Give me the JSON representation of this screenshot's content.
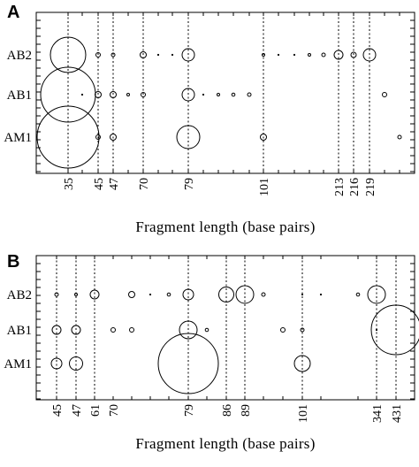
{
  "chart_data": [
    {
      "type": "scatter",
      "panel_label": "A",
      "xlabel": "Fragment length (base pairs)",
      "rows": [
        "AB2",
        "AB1",
        "AM1"
      ],
      "x_ticks": [
        "35",
        "45",
        "47",
        "70",
        "79",
        "101",
        "213",
        "216",
        "219"
      ],
      "dotted_lines": [
        "35",
        "45",
        "47",
        "70",
        "79",
        "101",
        "213",
        "216",
        "219"
      ],
      "points": [
        {
          "row": "AB2",
          "x": "35",
          "size": 20
        },
        {
          "row": "AB2",
          "x": "45",
          "size": 2.5
        },
        {
          "row": "AB2",
          "x": "47",
          "size": 2
        },
        {
          "row": "AB2",
          "x": "70",
          "size": 3.5
        },
        {
          "row": "AB2",
          "x": "74",
          "size": 1.2
        },
        {
          "row": "AB2",
          "x": "76",
          "size": 1.2
        },
        {
          "row": "AB2",
          "x": "79",
          "size": 7
        },
        {
          "row": "AB2",
          "x": "101",
          "size": 1.5
        },
        {
          "row": "AB2",
          "x": "110",
          "size": 1
        },
        {
          "row": "AB2",
          "x": "150",
          "size": 1.3
        },
        {
          "row": "AB2",
          "x": "180",
          "size": 1.5
        },
        {
          "row": "AB2",
          "x": "200",
          "size": 2
        },
        {
          "row": "AB2",
          "x": "213",
          "size": 5
        },
        {
          "row": "AB2",
          "x": "216",
          "size": 3
        },
        {
          "row": "AB2",
          "x": "219",
          "size": 7
        },
        {
          "row": "AB1",
          "x": "35",
          "size": 31
        },
        {
          "row": "AB1",
          "x": "40",
          "size": 1
        },
        {
          "row": "AB1",
          "x": "45",
          "size": 3.5
        },
        {
          "row": "AB1",
          "x": "47",
          "size": 3.5
        },
        {
          "row": "AB1",
          "x": "60",
          "size": 1.5
        },
        {
          "row": "AB1",
          "x": "70",
          "size": 2.5
        },
        {
          "row": "AB1",
          "x": "79",
          "size": 7
        },
        {
          "row": "AB1",
          "x": "82",
          "size": 1.2
        },
        {
          "row": "AB1",
          "x": "85",
          "size": 1.5
        },
        {
          "row": "AB1",
          "x": "88",
          "size": 1.8
        },
        {
          "row": "AB1",
          "x": "95",
          "size": 2
        },
        {
          "row": "AB1",
          "x": "230",
          "size": 2.5
        },
        {
          "row": "AM1",
          "x": "35",
          "size": 35
        },
        {
          "row": "AM1",
          "x": "45",
          "size": 2.5
        },
        {
          "row": "AM1",
          "x": "47",
          "size": 3.5
        },
        {
          "row": "AM1",
          "x": "79",
          "size": 13
        },
        {
          "row": "AM1",
          "x": "101",
          "size": 3.5
        },
        {
          "row": "AM1",
          "x": "240",
          "size": 2
        }
      ]
    },
    {
      "type": "scatter",
      "panel_label": "B",
      "xlabel": "Fragment length (base pairs)",
      "rows": [
        "AB2",
        "AB1",
        "AM1"
      ],
      "x_ticks": [
        "45",
        "47",
        "61",
        "70",
        "79",
        "86",
        "89",
        "101",
        "341",
        "431"
      ],
      "dotted_lines": [
        "45",
        "47",
        "61",
        "79",
        "86",
        "89",
        "101",
        "341",
        "431"
      ],
      "points": [
        {
          "row": "AB2",
          "x": "45",
          "size": 2
        },
        {
          "row": "AB2",
          "x": "47",
          "size": 1.5
        },
        {
          "row": "AB2",
          "x": "61",
          "size": 5
        },
        {
          "row": "AB2",
          "x": "72",
          "size": 3.5
        },
        {
          "row": "AB2",
          "x": "74",
          "size": 1.3
        },
        {
          "row": "AB2",
          "x": "76",
          "size": 1.8
        },
        {
          "row": "AB2",
          "x": "79",
          "size": 6
        },
        {
          "row": "AB2",
          "x": "86",
          "size": 8.5
        },
        {
          "row": "AB2",
          "x": "89",
          "size": 10
        },
        {
          "row": "AB2",
          "x": "92",
          "size": 2
        },
        {
          "row": "AB2",
          "x": "101",
          "size": 1.2
        },
        {
          "row": "AB2",
          "x": "200",
          "size": 1
        },
        {
          "row": "AB2",
          "x": "300",
          "size": 1.8
        },
        {
          "row": "AB2",
          "x": "341",
          "size": 10
        },
        {
          "row": "AB1",
          "x": "45",
          "size": 5
        },
        {
          "row": "AB1",
          "x": "47",
          "size": 5
        },
        {
          "row": "AB1",
          "x": "70",
          "size": 2.5
        },
        {
          "row": "AB1",
          "x": "72",
          "size": 2.5
        },
        {
          "row": "AB1",
          "x": "79",
          "size": 10
        },
        {
          "row": "AB1",
          "x": "82",
          "size": 1.8
        },
        {
          "row": "AB1",
          "x": "95",
          "size": 2.5
        },
        {
          "row": "AB1",
          "x": "101",
          "size": 2
        },
        {
          "row": "AB1",
          "x": "341",
          "size": 1
        },
        {
          "row": "AB1",
          "x": "431",
          "size": 28
        },
        {
          "row": "AM1",
          "x": "45",
          "size": 6
        },
        {
          "row": "AM1",
          "x": "47",
          "size": 7.5
        },
        {
          "row": "AM1",
          "x": "79",
          "size": 34
        },
        {
          "row": "AM1",
          "x": "101",
          "size": 9
        }
      ]
    }
  ]
}
